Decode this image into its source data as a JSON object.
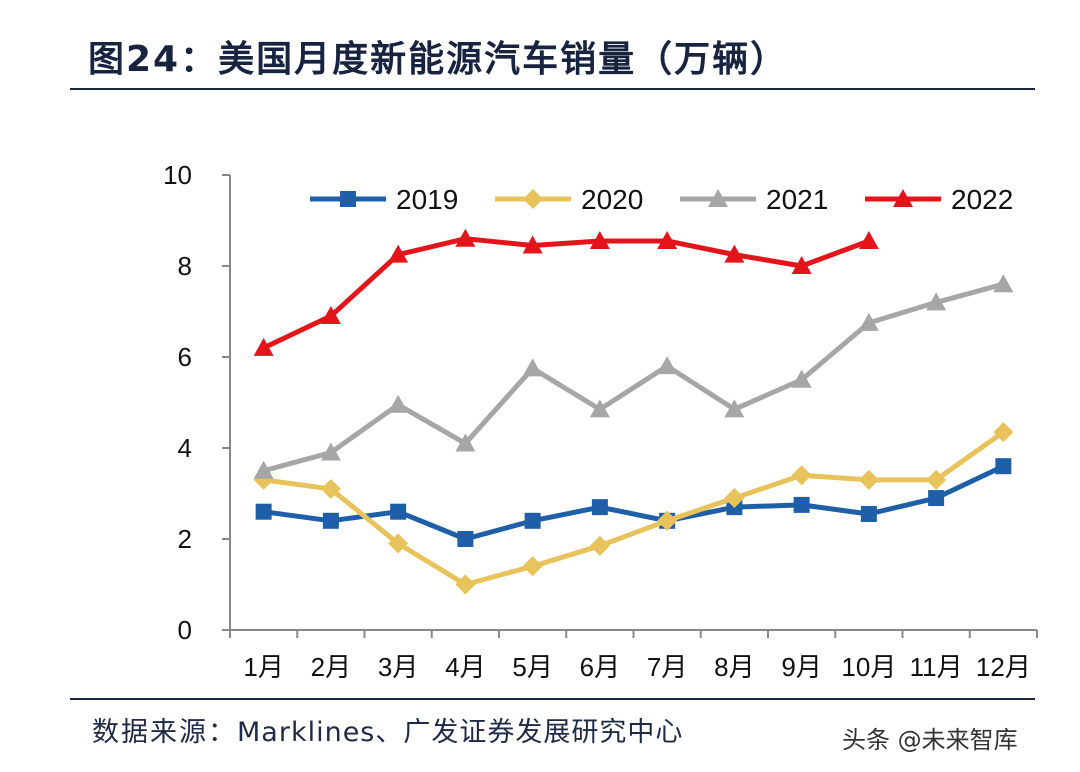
{
  "title": "图24：美国月度新能源汽车销量（万辆）",
  "source": {
    "label": "数据来源：",
    "value": "Marklines、广发证券发展研究中心"
  },
  "watermark": "头条 @未来智库",
  "chart_data": {
    "type": "line",
    "title": "美国月度新能源汽车销量（万辆）",
    "xlabel": "",
    "ylabel": "",
    "categories": [
      "1月",
      "2月",
      "3月",
      "4月",
      "5月",
      "6月",
      "7月",
      "8月",
      "9月",
      "10月",
      "11月",
      "12月"
    ],
    "ylim": [
      0,
      10
    ],
    "yticks": [
      "0",
      "2",
      "4",
      "6",
      "8",
      "10"
    ],
    "legend_position": "top",
    "grid": false,
    "series": [
      {
        "name": "2019",
        "color": "#1f5fa8",
        "marker": "square",
        "values": [
          2.6,
          2.4,
          2.6,
          2.0,
          2.4,
          2.7,
          2.4,
          2.7,
          2.75,
          2.55,
          2.9,
          3.6
        ]
      },
      {
        "name": "2020",
        "color": "#e8c25a",
        "marker": "diamond",
        "values": [
          3.3,
          3.1,
          1.9,
          1.0,
          1.4,
          1.85,
          2.4,
          2.9,
          3.4,
          3.3,
          3.3,
          4.35
        ]
      },
      {
        "name": "2021",
        "color": "#a6a6a6",
        "marker": "triangle",
        "values": [
          3.5,
          3.9,
          4.95,
          4.1,
          5.75,
          4.85,
          5.8,
          4.85,
          5.5,
          6.75,
          7.2,
          7.6
        ]
      },
      {
        "name": "2022",
        "color": "#e3151a",
        "marker": "triangle",
        "values": [
          6.2,
          6.9,
          8.25,
          8.6,
          8.45,
          8.55,
          8.55,
          8.25,
          8.0,
          8.55,
          null,
          null
        ]
      }
    ]
  }
}
